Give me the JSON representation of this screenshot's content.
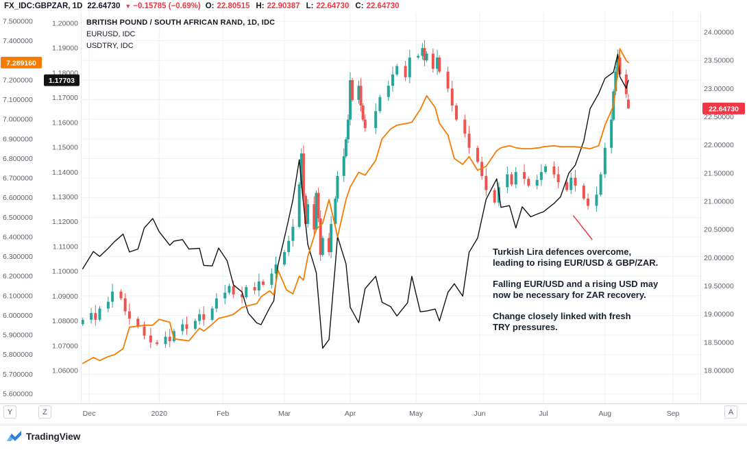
{
  "header": {
    "title": "FX_IDC:GBPZAR, 1D",
    "last": "22.64730",
    "arrow": "▼",
    "change": "−0.15785 (−0.69%)",
    "ohlc": [
      {
        "label": "O:",
        "value": "22.80515"
      },
      {
        "label": "H:",
        "value": "22.90387"
      },
      {
        "label": "L:",
        "value": "22.64730"
      },
      {
        "label": "C:",
        "value": "22.64730"
      }
    ]
  },
  "legend": {
    "lines": [
      "BRITISH POUND / SOUTH AFRICAN RAND, 1D, IDC",
      "EURUSD, IDC",
      "USDTRY, IDC"
    ]
  },
  "annotation": {
    "paragraphs": [
      [
        "Turkish Lira defences overcome,",
        "leading to rising EUR/USD & GBP/ZAR."
      ],
      [
        "Falling EUR/USD and a rising USD may",
        "now be necessary for ZAR recovery."
      ],
      [
        "Change closely linked with fresh",
        "TRY pressures."
      ]
    ]
  },
  "toolbar": {
    "buttons": [
      {
        "label": "Y"
      },
      {
        "label": "Z"
      },
      {
        "label": "A"
      }
    ]
  },
  "footer": {
    "brand": "TradingView"
  },
  "chart_data": {
    "type": "mixed",
    "grid": true,
    "legend_position": "top-left",
    "x_axis": {
      "t_unit": "days since 2019-12-01",
      "months": [
        {
          "label": "Dec",
          "t": 0
        },
        {
          "label": "2020",
          "t": 33
        },
        {
          "label": "Feb",
          "t": 63
        },
        {
          "label": "Mar",
          "t": 92
        },
        {
          "label": "Apr",
          "t": 123
        },
        {
          "label": "May",
          "t": 154
        },
        {
          "label": "Jun",
          "t": 184
        },
        {
          "label": "Jul",
          "t": 214
        },
        {
          "label": "Aug",
          "t": 243
        },
        {
          "label": "Sep",
          "t": 275
        }
      ]
    },
    "axes": {
      "left_outer": {
        "symbol": "USDTRY",
        "min": 5.6,
        "max": 7.5,
        "tick_step": 0.1,
        "decimals": 6,
        "hidden_ticks": [
          7.3
        ]
      },
      "left_inner": {
        "symbol": "EURUSD",
        "min": 1.06,
        "max": 1.2,
        "tick_step": 0.01,
        "decimals": 5
      },
      "right": {
        "symbol": "GBPZAR",
        "min": 18.0,
        "max": 24.0,
        "tick_step": 0.5,
        "decimals": 5
      }
    },
    "price_labels": [
      {
        "name": "usdtry",
        "scale": "left_outer",
        "value": 7.28916,
        "text": "7.289160",
        "bg": "#f57c00"
      },
      {
        "name": "eurusd",
        "scale": "left_inner",
        "value": 1.17703,
        "text": "1.17703",
        "bg": "#131313"
      },
      {
        "name": "gbpzar",
        "scale": "right",
        "value": 22.6473,
        "text": "22.64730",
        "bg": "#f23645"
      }
    ],
    "series": [
      {
        "name": "GBPZAR",
        "type": "candlestick",
        "scale": "right",
        "up_color": "#26a69a",
        "down_color": "#ef5350",
        "t": [
          -3,
          1,
          3,
          5,
          9,
          11,
          15,
          17,
          19,
          23,
          26,
          29,
          32,
          36,
          38,
          40,
          44,
          46,
          50,
          52,
          54,
          58,
          60,
          64,
          66,
          68,
          72,
          74,
          78,
          80,
          82,
          86,
          88,
          92,
          94,
          96,
          99,
          100,
          101,
          102,
          103,
          106,
          107,
          108,
          109,
          110,
          113,
          114,
          116,
          117,
          120,
          121,
          122,
          123,
          124,
          127,
          128,
          129,
          130,
          135,
          137,
          141,
          143,
          145,
          149,
          151,
          155,
          157,
          158,
          159,
          162,
          164,
          165,
          169,
          171,
          173,
          177,
          179,
          183,
          185,
          187,
          191,
          193,
          197,
          199,
          201,
          205,
          207,
          211,
          213,
          215,
          219,
          221,
          225,
          227,
          229,
          233,
          235,
          239,
          241,
          243,
          246,
          247,
          248,
          249,
          250,
          253,
          254
        ],
        "close": [
          18.9,
          19.02,
          18.9,
          19.1,
          19.22,
          19.4,
          19.28,
          19.05,
          18.92,
          18.78,
          18.62,
          18.5,
          18.47,
          18.6,
          18.52,
          18.7,
          18.82,
          18.74,
          18.88,
          19.0,
          18.9,
          19.1,
          19.28,
          19.38,
          19.5,
          19.35,
          19.3,
          19.48,
          19.42,
          19.58,
          19.52,
          19.72,
          19.88,
          20.1,
          20.3,
          20.55,
          21.3,
          21.85,
          21.1,
          20.6,
          20.95,
          20.5,
          21.15,
          20.7,
          20.05,
          20.35,
          20.1,
          20.6,
          21.05,
          21.45,
          21.8,
          22.1,
          22.45,
          23.15,
          22.8,
          23.05,
          22.7,
          22.45,
          22.3,
          22.6,
          22.85,
          23.05,
          23.25,
          23.4,
          23.2,
          23.55,
          23.58,
          23.72,
          23.5,
          23.62,
          23.35,
          23.55,
          23.3,
          23.0,
          22.7,
          22.45,
          22.2,
          21.95,
          21.7,
          21.45,
          21.2,
          20.98,
          21.25,
          21.48,
          21.3,
          21.52,
          21.4,
          21.28,
          21.38,
          21.52,
          21.62,
          21.48,
          21.34,
          21.2,
          21.42,
          21.28,
          21.05,
          20.92,
          21.12,
          21.48,
          21.95,
          22.45,
          22.95,
          23.3,
          23.55,
          23.25,
          22.9,
          22.65
        ],
        "last_ohlc": {
          "o": 22.80515,
          "h": 22.90387,
          "l": 22.6473,
          "c": 22.6473
        }
      },
      {
        "name": "EURUSD",
        "type": "line",
        "scale": "left_inner",
        "color": "#101010",
        "width": 1.4,
        "t": [
          -3,
          2,
          5,
          9,
          12,
          16,
          19,
          23,
          26,
          30,
          33,
          38,
          40,
          44,
          47,
          52,
          54,
          58,
          61,
          65,
          68,
          72,
          75,
          79,
          81,
          85,
          87,
          89,
          93,
          96,
          99,
          101,
          103,
          107,
          110,
          113,
          116,
          117,
          121,
          123,
          127,
          130,
          135,
          138,
          142,
          145,
          150,
          152,
          156,
          159,
          163,
          165,
          169,
          172,
          176,
          179,
          183,
          187,
          192,
          194,
          198,
          201,
          204,
          208,
          212,
          214,
          219,
          222,
          226,
          229,
          233,
          236,
          240,
          243,
          247,
          249,
          250,
          253,
          254
        ],
        "v": [
          1.101,
          1.108,
          1.106,
          1.1093,
          1.112,
          1.115,
          1.1078,
          1.109,
          1.1175,
          1.1213,
          1.116,
          1.1105,
          1.1122,
          1.1128,
          1.109,
          1.1093,
          1.1024,
          1.1022,
          1.1094,
          1.1043,
          1.0945,
          1.0917,
          1.0831,
          1.0792,
          1.0785,
          1.0852,
          1.0881,
          1.1026,
          1.1172,
          1.1288,
          1.145,
          1.1271,
          1.1109,
          1.0995,
          1.069,
          1.0725,
          1.103,
          1.114,
          1.103,
          1.0855,
          1.0793,
          1.093,
          1.098,
          1.0875,
          1.0858,
          1.082,
          1.0873,
          1.098,
          1.0837,
          1.084,
          1.0848,
          1.08,
          1.0915,
          1.095,
          1.09,
          1.1077,
          1.1134,
          1.129,
          1.1373,
          1.1258,
          1.1265,
          1.1175,
          1.126,
          1.122,
          1.1234,
          1.124,
          1.1274,
          1.13,
          1.1396,
          1.1428,
          1.1525,
          1.1656,
          1.1716,
          1.1778,
          1.1803,
          1.1875,
          1.1785,
          1.1738,
          1.177
        ]
      },
      {
        "name": "USDTRY",
        "type": "line",
        "scale": "left_outer",
        "color": "#f57c00",
        "width": 1.8,
        "t": [
          -3,
          2,
          5,
          9,
          12,
          16,
          19,
          23,
          26,
          30,
          33,
          38,
          40,
          44,
          47,
          52,
          54,
          58,
          61,
          65,
          68,
          72,
          75,
          79,
          81,
          85,
          87,
          89,
          93,
          96,
          99,
          101,
          103,
          107,
          110,
          113,
          116,
          117,
          121,
          123,
          127,
          130,
          135,
          138,
          142,
          145,
          150,
          152,
          156,
          159,
          163,
          165,
          169,
          172,
          176,
          179,
          183,
          187,
          192,
          194,
          198,
          201,
          204,
          208,
          212,
          214,
          219,
          222,
          226,
          229,
          233,
          236,
          240,
          243,
          247,
          249,
          250,
          253,
          254
        ],
        "v": [
          5.755,
          5.785,
          5.77,
          5.79,
          5.8,
          5.83,
          5.94,
          5.945,
          5.95,
          5.95,
          5.98,
          5.965,
          5.88,
          5.875,
          5.87,
          5.935,
          5.92,
          5.955,
          5.985,
          5.995,
          6.005,
          6.04,
          6.05,
          6.06,
          6.095,
          6.125,
          6.105,
          6.23,
          6.13,
          6.11,
          6.2,
          6.18,
          6.3,
          6.44,
          6.47,
          6.59,
          6.45,
          6.4,
          6.59,
          6.655,
          6.73,
          6.715,
          6.79,
          6.9,
          6.95,
          6.97,
          6.98,
          6.985,
          7.05,
          7.12,
          7.06,
          6.98,
          6.92,
          6.8,
          6.77,
          6.81,
          6.74,
          6.76,
          6.84,
          6.855,
          6.865,
          6.855,
          6.85,
          6.85,
          6.855,
          6.86,
          6.865,
          6.86,
          6.86,
          6.86,
          6.855,
          6.85,
          6.865,
          6.97,
          7.07,
          7.24,
          7.36,
          7.3,
          7.289
        ]
      }
    ],
    "drawings": [
      {
        "type": "trendline",
        "scale": "right",
        "color": "#f23645",
        "points": [
          [
            228,
            20.75
          ],
          [
            237,
            20.32
          ]
        ]
      }
    ]
  }
}
